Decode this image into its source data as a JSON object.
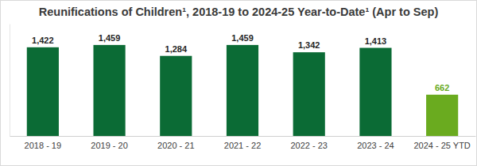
{
  "chart_data": {
    "type": "bar",
    "title": "Reunifications of Children¹, 2018-19 to 2024-25 Year-to-Date¹ (Apr to Sep)",
    "categories": [
      "2018 - 19",
      "2019 - 20",
      "2020 - 21",
      "2021 - 22",
      "2022 - 23",
      "2023 - 24",
      "2024 - 25 YTD"
    ],
    "values": [
      1422,
      1459,
      1284,
      1459,
      1342,
      1413,
      662
    ],
    "colors": [
      "#0b6b35",
      "#0b6b35",
      "#0b6b35",
      "#0b6b35",
      "#0b6b35",
      "#0b6b35",
      "#6aab1f"
    ],
    "ylim": [
      0,
      1800
    ],
    "grid": false,
    "data_labels": true,
    "tick_labels": "x"
  }
}
